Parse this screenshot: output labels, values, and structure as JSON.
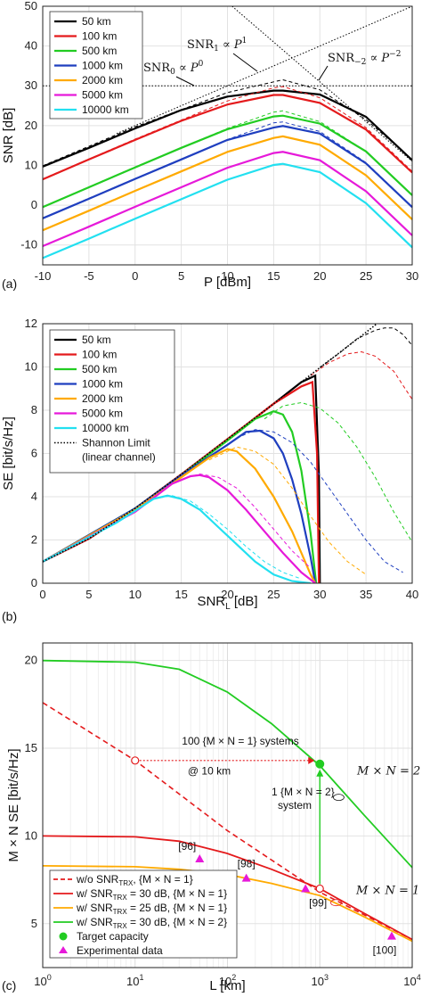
{
  "chart_data": [
    {
      "panel": "(a)",
      "type": "line",
      "xlabel": "P [dBm]",
      "ylabel": "SNR [dB]",
      "xlim": [
        -10,
        30
      ],
      "ylim": [
        -15,
        50
      ],
      "xticks": [
        "-10",
        "-5",
        "0",
        "5",
        "10",
        "15",
        "20",
        "25",
        "30"
      ],
      "yticks": [
        "-10",
        "0",
        "10",
        "20",
        "30",
        "40",
        "50"
      ],
      "grid": true,
      "legend_position": "top-left",
      "series": [
        {
          "name": "50 km",
          "color": "#000000",
          "x": [
            -10,
            -5,
            0,
            5,
            10,
            15,
            16,
            20,
            25,
            30
          ],
          "y": [
            9.7,
            14.4,
            19.3,
            23.9,
            27.3,
            28.8,
            28.8,
            27.8,
            22.2,
            11.3
          ],
          "dashed_x": [
            -10,
            0,
            10,
            15,
            16,
            20,
            25,
            30
          ],
          "dashed_y": [
            9.9,
            19.7,
            28.3,
            31.0,
            31.5,
            29.0,
            21.5,
            11.5
          ]
        },
        {
          "name": "100 km",
          "color": "#e41a1c",
          "x": [
            -10,
            -5,
            0,
            5,
            10,
            15,
            16,
            20,
            25,
            30
          ],
          "y": [
            6.5,
            11.5,
            16.4,
            21.2,
            25.3,
            27.7,
            27.7,
            25.7,
            19.0,
            8.2
          ],
          "dashed_x": [
            -10,
            0,
            10,
            15,
            16,
            20,
            25,
            30
          ],
          "dashed_y": [
            6.6,
            16.6,
            26.2,
            29.5,
            29.8,
            27.0,
            19.5,
            8.5
          ]
        },
        {
          "name": "500 km",
          "color": "#22cc22",
          "x": [
            -10,
            -5,
            0,
            5,
            10,
            15,
            16,
            20,
            25,
            30
          ],
          "y": [
            -0.5,
            4.5,
            9.5,
            14.4,
            19.1,
            22.3,
            22.5,
            20.5,
            13.5,
            2.5
          ],
          "dashed_x": [
            -10,
            0,
            10,
            15,
            16,
            20,
            25,
            30
          ],
          "dashed_y": [
            -0.4,
            9.6,
            19.3,
            23.4,
            23.7,
            21.0,
            13.5,
            2.6
          ]
        },
        {
          "name": "1000 km",
          "color": "#1f3fbf",
          "x": [
            -10,
            -5,
            0,
            5,
            10,
            15,
            16,
            20,
            25,
            30
          ],
          "y": [
            -3.3,
            1.6,
            6.6,
            11.5,
            16.4,
            19.5,
            19.9,
            18.0,
            10.5,
            -0.5
          ],
          "dashed_x": [
            -10,
            0,
            10,
            15,
            16,
            20,
            25,
            30
          ],
          "dashed_y": [
            -3.2,
            6.7,
            16.5,
            20.7,
            20.9,
            18.5,
            10.7,
            -0.4
          ]
        },
        {
          "name": "2000 km",
          "color": "#ffaa00",
          "x": [
            -10,
            -5,
            0,
            5,
            10,
            15,
            16,
            20,
            25,
            30
          ],
          "y": [
            -6.3,
            -1.4,
            3.6,
            8.5,
            13.4,
            16.9,
            17.3,
            15.2,
            7.5,
            -3.6
          ]
        },
        {
          "name": "5000 km",
          "color": "#e619d9",
          "x": [
            -10,
            -5,
            0,
            5,
            10,
            15,
            16,
            20,
            25,
            30
          ],
          "y": [
            -10.3,
            -5.4,
            -0.4,
            4.5,
            9.4,
            13.1,
            13.4,
            11.3,
            3.5,
            -7.6
          ]
        },
        {
          "name": "10000 km",
          "color": "#22e0f0",
          "x": [
            -10,
            -5,
            0,
            5,
            10,
            15,
            16,
            20,
            25,
            30
          ],
          "y": [
            -13.3,
            -8.4,
            -3.4,
            1.5,
            6.4,
            10.1,
            10.4,
            8.3,
            0.5,
            -10.6
          ]
        }
      ],
      "annotations": [
        {
          "base": "SNR",
          "sub": "1",
          "mid": " ∝ ",
          "var": "P",
          "sup": "1"
        },
        {
          "base": "SNR",
          "sub": "0",
          "mid": " ∝ ",
          "var": "P",
          "sup": "0"
        },
        {
          "base": "SNR",
          "sub": "−2",
          "mid": " ∝ ",
          "var": "P",
          "sup": "−2"
        }
      ]
    },
    {
      "panel": "(b)",
      "type": "line",
      "xlabel": "SNR",
      "xlabel_sub": "L",
      "xlabel_unit": " [dB]",
      "ylabel": "SE [bit/s/Hz]",
      "xlim": [
        0,
        40
      ],
      "ylim": [
        0,
        12
      ],
      "xticks": [
        "0",
        "5",
        "10",
        "15",
        "20",
        "25",
        "30",
        "35",
        "40"
      ],
      "yticks": [
        "0",
        "2",
        "4",
        "6",
        "8",
        "10",
        "12"
      ],
      "grid": true,
      "legend_position": "top-left",
      "series": [
        {
          "name": "50 km",
          "color": "#000000",
          "x": [
            0,
            5,
            10,
            15,
            20,
            25,
            28,
            29.5,
            29.9,
            30
          ],
          "y": [
            1.0,
            2.06,
            3.46,
            5.03,
            6.66,
            8.3,
            9.3,
            9.6,
            5.0,
            0.0
          ],
          "dashed_x": [
            30,
            32,
            34,
            36,
            37,
            38,
            39,
            40
          ],
          "dashed_y": [
            9.97,
            10.6,
            11.3,
            11.7,
            11.8,
            11.8,
            11.5,
            11.0
          ]
        },
        {
          "name": "100 km",
          "color": "#e41a1c",
          "x": [
            0,
            5,
            10,
            15,
            20,
            25,
            28,
            29.2,
            29.7,
            29.9
          ],
          "y": [
            1.0,
            2.06,
            3.46,
            5.03,
            6.66,
            8.3,
            9.1,
            9.3,
            6.0,
            0.0
          ],
          "dashed_x": [
            29,
            31,
            33,
            34.5,
            36,
            38,
            40
          ],
          "dashed_y": [
            9.6,
            10.2,
            10.6,
            10.7,
            10.5,
            9.8,
            8.5
          ]
        },
        {
          "name": "500 km",
          "color": "#22cc22",
          "x": [
            0,
            10,
            15,
            20,
            23,
            25,
            26,
            27,
            28,
            29,
            29.6
          ],
          "y": [
            1.0,
            3.46,
            5.0,
            6.6,
            7.6,
            7.95,
            7.8,
            7.0,
            5.2,
            2.3,
            0.0
          ],
          "dashed_x": [
            24,
            26,
            28,
            30,
            32,
            34,
            36,
            38,
            40
          ],
          "dashed_y": [
            7.6,
            8.2,
            8.35,
            8.1,
            7.4,
            6.3,
            4.9,
            3.3,
            1.9
          ]
        },
        {
          "name": "1000 km",
          "color": "#1f3fbf",
          "x": [
            0,
            10,
            15,
            20,
            22,
            23.5,
            25,
            26,
            27,
            28,
            29,
            29.5
          ],
          "y": [
            1.0,
            3.46,
            5.0,
            6.4,
            7.0,
            7.05,
            6.7,
            6.0,
            4.8,
            3.2,
            1.2,
            0.0
          ],
          "dashed_x": [
            21,
            23,
            25,
            27,
            29,
            31,
            33,
            35,
            37,
            39
          ],
          "dashed_y": [
            6.7,
            7.1,
            7.0,
            6.5,
            5.6,
            4.4,
            3.2,
            2.0,
            1.0,
            0.5
          ]
        },
        {
          "name": "2000 km",
          "color": "#ffaa00",
          "x": [
            0,
            10,
            15,
            18,
            20,
            21,
            23,
            25,
            27,
            28,
            29,
            29.5
          ],
          "y": [
            1.0,
            3.4,
            4.9,
            5.8,
            6.2,
            6.1,
            5.3,
            4.0,
            2.4,
            1.4,
            0.4,
            0.0
          ],
          "dashed_x": [
            18,
            21,
            23,
            25,
            27,
            29,
            31,
            33,
            35
          ],
          "dashed_y": [
            5.7,
            6.3,
            6.1,
            5.5,
            4.4,
            3.1,
            1.9,
            1.0,
            0.4
          ]
        },
        {
          "name": "5000 km",
          "color": "#e619d9",
          "x": [
            0,
            10,
            14,
            16,
            17,
            18,
            20,
            22,
            24,
            26,
            28,
            29.5
          ],
          "y": [
            1.0,
            3.3,
            4.6,
            4.95,
            5.0,
            4.9,
            4.3,
            3.4,
            2.4,
            1.4,
            0.5,
            0.0
          ],
          "dashed_x": [
            15,
            17,
            19,
            21,
            23,
            25,
            27,
            29
          ],
          "dashed_y": [
            4.8,
            5.05,
            4.9,
            4.4,
            3.5,
            2.5,
            1.5,
            0.7
          ]
        },
        {
          "name": "10000 km",
          "color": "#22e0f0",
          "x": [
            0,
            8,
            12,
            13.5,
            15,
            17,
            19,
            21,
            23,
            25,
            27,
            29
          ],
          "y": [
            1.0,
            2.8,
            3.9,
            4.05,
            3.9,
            3.4,
            2.6,
            1.8,
            1.0,
            0.4,
            0.1,
            0.0
          ],
          "dashed_x": [
            12,
            14,
            16,
            18,
            20,
            22,
            24,
            26,
            28
          ],
          "dashed_y": [
            3.9,
            4.05,
            3.8,
            3.2,
            2.5,
            1.7,
            1.0,
            0.5,
            0.2
          ]
        },
        {
          "name": "Shannon Limit",
          "name2": "(linear channel)",
          "color": "#000000",
          "dotted": true,
          "x": [
            0,
            5,
            10,
            15,
            20,
            25,
            30,
            35,
            40
          ],
          "y": [
            1.0,
            2.06,
            3.46,
            5.03,
            6.66,
            8.3,
            9.97,
            11.6,
            13.3
          ]
        }
      ]
    },
    {
      "panel": "(c)",
      "type": "line",
      "xlabel": "L [km]",
      "ylabel": "M × N  SE [bit/s/Hz]",
      "xscale": "log",
      "xlim": [
        1,
        10000
      ],
      "ylim": [
        2.5,
        21
      ],
      "xticks": [
        {
          "base": "10",
          "exp": "0"
        },
        {
          "base": "10",
          "exp": "1"
        },
        {
          "base": "10",
          "exp": "2"
        },
        {
          "base": "10",
          "exp": "3"
        },
        {
          "base": "10",
          "exp": "4"
        }
      ],
      "yticks": [
        "5",
        "10",
        "15",
        "20"
      ],
      "grid": true,
      "legend_position": "bottom-left",
      "series": [
        {
          "name": "w/o SNR",
          "name_sub": "TRX",
          "name_rest": ", {M × N = 1}",
          "color": "#e41a1c",
          "dashed": true,
          "x": [
            1,
            10,
            100,
            1000,
            10000
          ],
          "y": [
            17.6,
            14.3,
            10.3,
            6.8,
            4.1
          ]
        },
        {
          "name": "w/ SNR",
          "name_sub": "TRX",
          "name_rest": " = 30 dB, {M × N = 1}",
          "color": "#e41a1c",
          "x": [
            1,
            10,
            30,
            100,
            300,
            1000,
            3000,
            10000
          ],
          "y": [
            10.0,
            9.95,
            9.7,
            9.0,
            8.1,
            7.0,
            5.6,
            4.1
          ]
        },
        {
          "name": "w/ SNR",
          "name_sub": "TRX",
          "name_rest": " = 25 dB, {M × N = 1}",
          "color": "#ffaa00",
          "x": [
            1,
            10,
            30,
            100,
            300,
            1000,
            3000,
            10000
          ],
          "y": [
            8.3,
            8.25,
            8.1,
            7.8,
            7.3,
            6.6,
            5.4,
            4.0
          ]
        },
        {
          "name": "w/ SNR",
          "name_sub": "TRX",
          "name_rest": " = 30 dB, {M × N = 2}",
          "color": "#22cc22",
          "x": [
            1,
            10,
            30,
            100,
            300,
            1000,
            3000,
            10000
          ],
          "y": [
            20.0,
            19.9,
            19.5,
            18.2,
            16.4,
            14.0,
            11.2,
            8.2
          ]
        }
      ],
      "markers": [
        {
          "name": "Target capacity",
          "color": "#22cc22"
        },
        {
          "name": "Experimental data",
          "color": "#e619d9"
        }
      ],
      "experimental_points": [
        {
          "label": "[96]",
          "x": 50,
          "y": 8.7
        },
        {
          "label": "[98]",
          "x": 160,
          "y": 7.6
        },
        {
          "label": "[99]",
          "x": 700,
          "y": 7.0
        },
        {
          "label": "[100]",
          "x": 6000,
          "y": 4.3
        }
      ],
      "annotations": {
        "systems_100": "100 {M × N = 1} systems",
        "at_10km": "@ 10 km",
        "one_sys_a": "1 {M × N = 2}",
        "one_sys_b": "system",
        "mn2": "M × N = 2",
        "mn1": "M × N = 1"
      }
    }
  ]
}
